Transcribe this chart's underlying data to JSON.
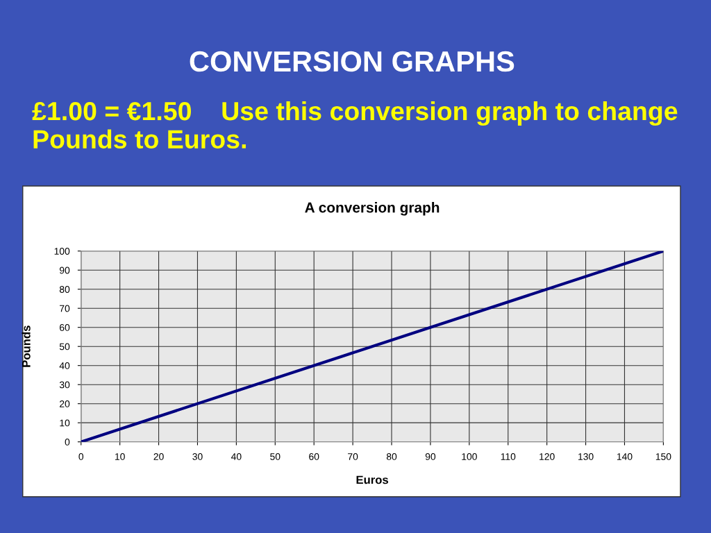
{
  "chart_data": {
    "type": "line",
    "title": "CONVERSION GRAPHS",
    "subtitle": "£1.00 = €1.50    Use this conversion graph to change Pounds to Euros.",
    "annotations": [
      "A conversion graph"
    ],
    "xlabel": "Euros",
    "ylabel": "Pounds",
    "series": [
      {
        "color": "#000080",
        "x": [
          0,
          150
        ],
        "values": [
          0,
          100
        ]
      }
    ],
    "xlim": [
      0,
      150
    ],
    "xticks": [
      0,
      10,
      20,
      30,
      40,
      50,
      60,
      70,
      80,
      90,
      100,
      110,
      120,
      130,
      140,
      150
    ],
    "ylim": [
      0,
      100
    ],
    "yticks": [
      0,
      10,
      20,
      30,
      40,
      50,
      60,
      70,
      80,
      90,
      100
    ],
    "grid": true,
    "marker": "none",
    "line_style": "solid"
  }
}
